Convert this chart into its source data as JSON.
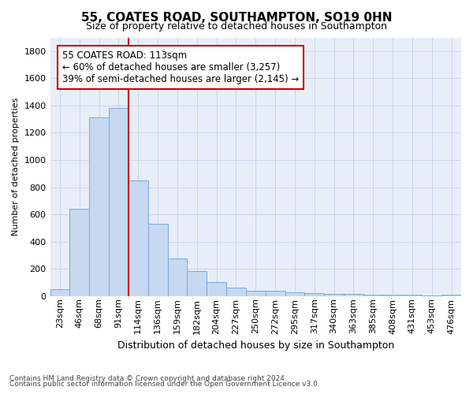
{
  "title": "55, COATES ROAD, SOUTHAMPTON, SO19 0HN",
  "subtitle": "Size of property relative to detached houses in Southampton",
  "xlabel": "Distribution of detached houses by size in Southampton",
  "ylabel": "Number of detached properties",
  "footnote1": "Contains HM Land Registry data © Crown copyright and database right 2024.",
  "footnote2": "Contains public sector information licensed under the Open Government Licence v3.0.",
  "bar_labels": [
    "23sqm",
    "46sqm",
    "68sqm",
    "91sqm",
    "114sqm",
    "136sqm",
    "159sqm",
    "182sqm",
    "204sqm",
    "227sqm",
    "250sqm",
    "272sqm",
    "295sqm",
    "317sqm",
    "340sqm",
    "363sqm",
    "385sqm",
    "408sqm",
    "431sqm",
    "453sqm",
    "476sqm"
  ],
  "bar_values": [
    50,
    640,
    1310,
    1380,
    850,
    530,
    275,
    185,
    105,
    65,
    40,
    38,
    30,
    20,
    15,
    15,
    10,
    10,
    8,
    5,
    10
  ],
  "bar_color": "#c6d9f0",
  "bar_edge_color": "#7aa8d4",
  "grid_color": "#c8d4e8",
  "background_color": "#e8eef8",
  "vline_color": "#cc0000",
  "annotation_text_line1": "55 COATES ROAD: 113sqm",
  "annotation_text_line2": "← 60% of detached houses are smaller (3,257)",
  "annotation_text_line3": "39% of semi-detached houses are larger (2,145) →",
  "annotation_box_color": "#cc0000",
  "ylim": [
    0,
    1900
  ],
  "yticks": [
    0,
    200,
    400,
    600,
    800,
    1000,
    1200,
    1400,
    1600,
    1800
  ],
  "title_fontsize": 11,
  "subtitle_fontsize": 9,
  "ylabel_fontsize": 8,
  "xlabel_fontsize": 9,
  "tick_fontsize": 8,
  "annot_fontsize": 8.5,
  "footnote_fontsize": 6.5
}
